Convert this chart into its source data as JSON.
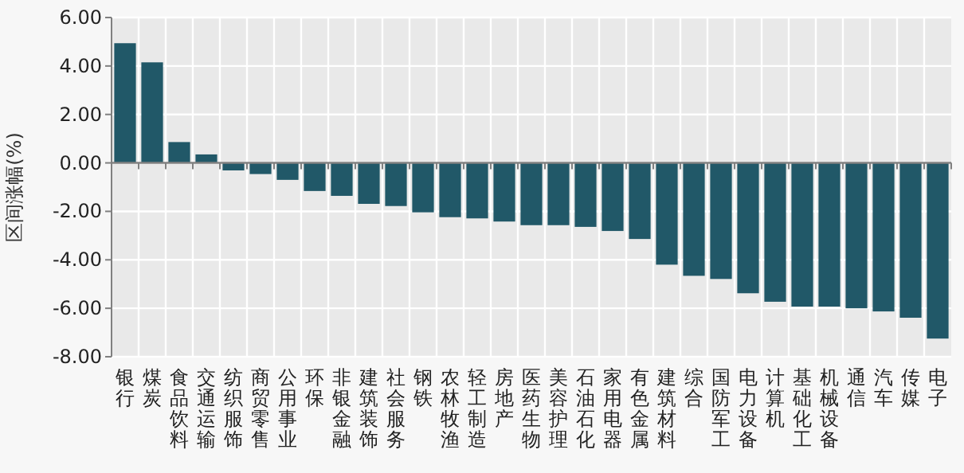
{
  "chart_data": {
    "type": "bar",
    "ylabel": "区间涨幅(%)",
    "categories": [
      "银行",
      "煤炭",
      "食品饮料",
      "交通运输",
      "纺织服饰",
      "商贸零售",
      "公用事业",
      "环保",
      "非银金融",
      "建筑装饰",
      "社会服务",
      "钢铁",
      "农林牧渔",
      "轻工制造",
      "房地产",
      "医药生物",
      "美容护理",
      "石油石化",
      "家用电器",
      "有色金属",
      "建筑材料",
      "综合",
      "国防军工",
      "电力设备",
      "计算机",
      "基础化工",
      "机械设备",
      "通信",
      "汽车",
      "传媒",
      "电子"
    ],
    "values": [
      4.94,
      4.15,
      0.86,
      0.35,
      -0.31,
      -0.46,
      -0.7,
      -1.16,
      -1.36,
      -1.69,
      -1.78,
      -2.04,
      -2.24,
      -2.29,
      -2.42,
      -2.57,
      -2.57,
      -2.64,
      -2.81,
      -3.14,
      -4.2,
      -4.66,
      -4.79,
      -5.38,
      -5.73,
      -5.93,
      -5.93,
      -6.0,
      -6.13,
      -6.39,
      -7.25
    ],
    "color": "#215868",
    "ylim": [
      -8,
      6
    ],
    "yticks": [
      {
        "value": 6,
        "label": "6.00"
      },
      {
        "value": 4,
        "label": "4.00"
      },
      {
        "value": 2,
        "label": "2.00"
      },
      {
        "value": 0,
        "label": "0.00"
      },
      {
        "value": -2,
        "label": "-2.00"
      },
      {
        "value": -4,
        "label": "-4.00"
      },
      {
        "value": -6,
        "label": "-6.00"
      },
      {
        "value": -8,
        "label": "-8.00"
      }
    ],
    "grid": true
  }
}
